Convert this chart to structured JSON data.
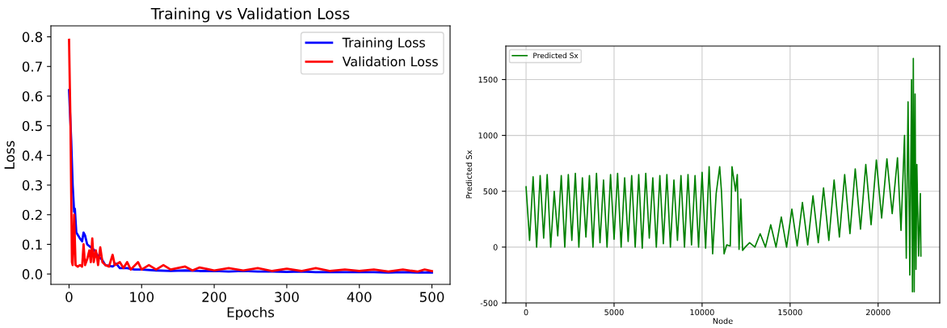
{
  "chart_data": [
    {
      "type": "line",
      "title": "Training vs Validation Loss",
      "xlabel": "Epochs",
      "ylabel": "Loss",
      "xlim": [
        -25,
        525
      ],
      "ylim": [
        -0.035,
        0.837
      ],
      "xticks": [
        0,
        100,
        200,
        300,
        400,
        500
      ],
      "yticks": [
        {
          "value": 0,
          "label": "0.0"
        },
        {
          "value": 0.1,
          "label": "0.1"
        },
        {
          "value": 0.2,
          "label": "0.2"
        },
        {
          "value": 0.3,
          "label": "0.3"
        },
        {
          "value": 0.4,
          "label": "0.4"
        },
        {
          "value": 0.5,
          "label": "0.5"
        },
        {
          "value": 0.6,
          "label": "0.6"
        },
        {
          "value": 0.7,
          "label": "0.7"
        },
        {
          "value": 0.8,
          "label": "0.8"
        }
      ],
      "legend": "top right",
      "grid": false,
      "series": [
        {
          "name": "Training Loss",
          "color": "#0000ff",
          "x": [
            0,
            3,
            5,
            7,
            8,
            10,
            15,
            18,
            20,
            22,
            25,
            30,
            35,
            40,
            45,
            50,
            60,
            65,
            70,
            80,
            90,
            100,
            120,
            140,
            160,
            180,
            200,
            220,
            240,
            260,
            280,
            300,
            320,
            340,
            360,
            380,
            400,
            420,
            440,
            460,
            480,
            500
          ],
          "values": [
            0.62,
            0.45,
            0.3,
            0.21,
            0.22,
            0.14,
            0.12,
            0.11,
            0.14,
            0.13,
            0.1,
            0.09,
            0.08,
            0.06,
            0.05,
            0.03,
            0.025,
            0.035,
            0.02,
            0.02,
            0.015,
            0.015,
            0.012,
            0.01,
            0.012,
            0.01,
            0.01,
            0.008,
            0.01,
            0.008,
            0.008,
            0.007,
            0.008,
            0.006,
            0.007,
            0.006,
            0.006,
            0.006,
            0.005,
            0.006,
            0.005,
            0.005
          ]
        },
        {
          "name": "Validation Loss",
          "color": "#ff0000",
          "x": [
            0,
            2,
            4,
            5,
            7,
            9,
            12,
            15,
            18,
            20,
            22,
            25,
            28,
            30,
            32,
            34,
            37,
            40,
            43,
            46,
            50,
            55,
            60,
            63,
            70,
            75,
            80,
            85,
            95,
            100,
            110,
            120,
            130,
            140,
            160,
            170,
            180,
            200,
            220,
            240,
            260,
            280,
            300,
            320,
            340,
            360,
            380,
            400,
            420,
            440,
            460,
            480,
            490,
            500
          ],
          "values": [
            0.79,
            0.5,
            0.04,
            0.03,
            0.2,
            0.03,
            0.025,
            0.03,
            0.025,
            0.1,
            0.03,
            0.05,
            0.08,
            0.04,
            0.12,
            0.04,
            0.08,
            0.03,
            0.09,
            0.04,
            0.03,
            0.025,
            0.065,
            0.03,
            0.04,
            0.02,
            0.04,
            0.015,
            0.04,
            0.015,
            0.03,
            0.015,
            0.03,
            0.015,
            0.025,
            0.012,
            0.022,
            0.012,
            0.02,
            0.012,
            0.02,
            0.01,
            0.018,
            0.01,
            0.02,
            0.01,
            0.015,
            0.01,
            0.015,
            0.008,
            0.015,
            0.008,
            0.015,
            0.01
          ]
        }
      ]
    },
    {
      "type": "line",
      "xlabel": "Node",
      "ylabel": "Predicted Sx",
      "xlim": [
        -1150,
        23500
      ],
      "ylim": [
        -500,
        1800
      ],
      "xticks": [
        0,
        5000,
        10000,
        15000,
        20000
      ],
      "yticks": [
        -500,
        0,
        500,
        1000,
        1500
      ],
      "legend": "top left",
      "grid": true,
      "series": [
        {
          "name": "Predicted Sx",
          "color": "#008000",
          "x": [
            0,
            200,
            400,
            600,
            800,
            1000,
            1200,
            1400,
            1600,
            1800,
            2000,
            2200,
            2400,
            2600,
            2800,
            3000,
            3200,
            3400,
            3600,
            3800,
            4000,
            4200,
            4400,
            4600,
            4800,
            5000,
            5200,
            5400,
            5600,
            5800,
            6000,
            6200,
            6400,
            6600,
            6800,
            7000,
            7200,
            7400,
            7600,
            7800,
            8000,
            8200,
            8400,
            8600,
            8800,
            9000,
            9200,
            9400,
            9600,
            9800,
            10000,
            10200,
            10400,
            10600,
            10800,
            11000,
            11100,
            11250,
            11400,
            11600,
            11700,
            11900,
            12000,
            12100,
            12200,
            12300,
            12450,
            12700,
            13000,
            13300,
            13600,
            13900,
            14200,
            14500,
            14800,
            15100,
            15400,
            15700,
            16000,
            16300,
            16600,
            16900,
            17200,
            17500,
            17800,
            18100,
            18400,
            18700,
            19000,
            19300,
            19600,
            19900,
            20200,
            20500,
            20800,
            21100,
            21300,
            21500,
            21600,
            21700,
            21800,
            21900,
            21950,
            22000,
            22050,
            22100,
            22150,
            22200,
            22300,
            22400,
            22430
          ],
          "values": [
            540,
            60,
            630,
            0,
            640,
            80,
            650,
            0,
            500,
            100,
            640,
            0,
            650,
            60,
            660,
            0,
            620,
            90,
            640,
            0,
            660,
            40,
            600,
            0,
            650,
            70,
            660,
            0,
            620,
            50,
            640,
            0,
            650,
            -10,
            660,
            80,
            620,
            0,
            640,
            30,
            650,
            0,
            600,
            60,
            640,
            0,
            650,
            20,
            640,
            0,
            670,
            -10,
            720,
            -60,
            480,
            720,
            500,
            -60,
            20,
            10,
            720,
            500,
            650,
            -20,
            430,
            -30,
            0,
            40,
            0,
            120,
            0,
            200,
            0,
            270,
            0,
            340,
            10,
            400,
            20,
            460,
            40,
            530,
            60,
            600,
            90,
            650,
            120,
            700,
            160,
            740,
            200,
            780,
            260,
            790,
            300,
            800,
            150,
            1000,
            -100,
            1300,
            -250,
            1500,
            -400,
            1690,
            -400,
            1370,
            -200,
            740,
            -80,
            480,
            -80
          ]
        }
      ]
    }
  ]
}
